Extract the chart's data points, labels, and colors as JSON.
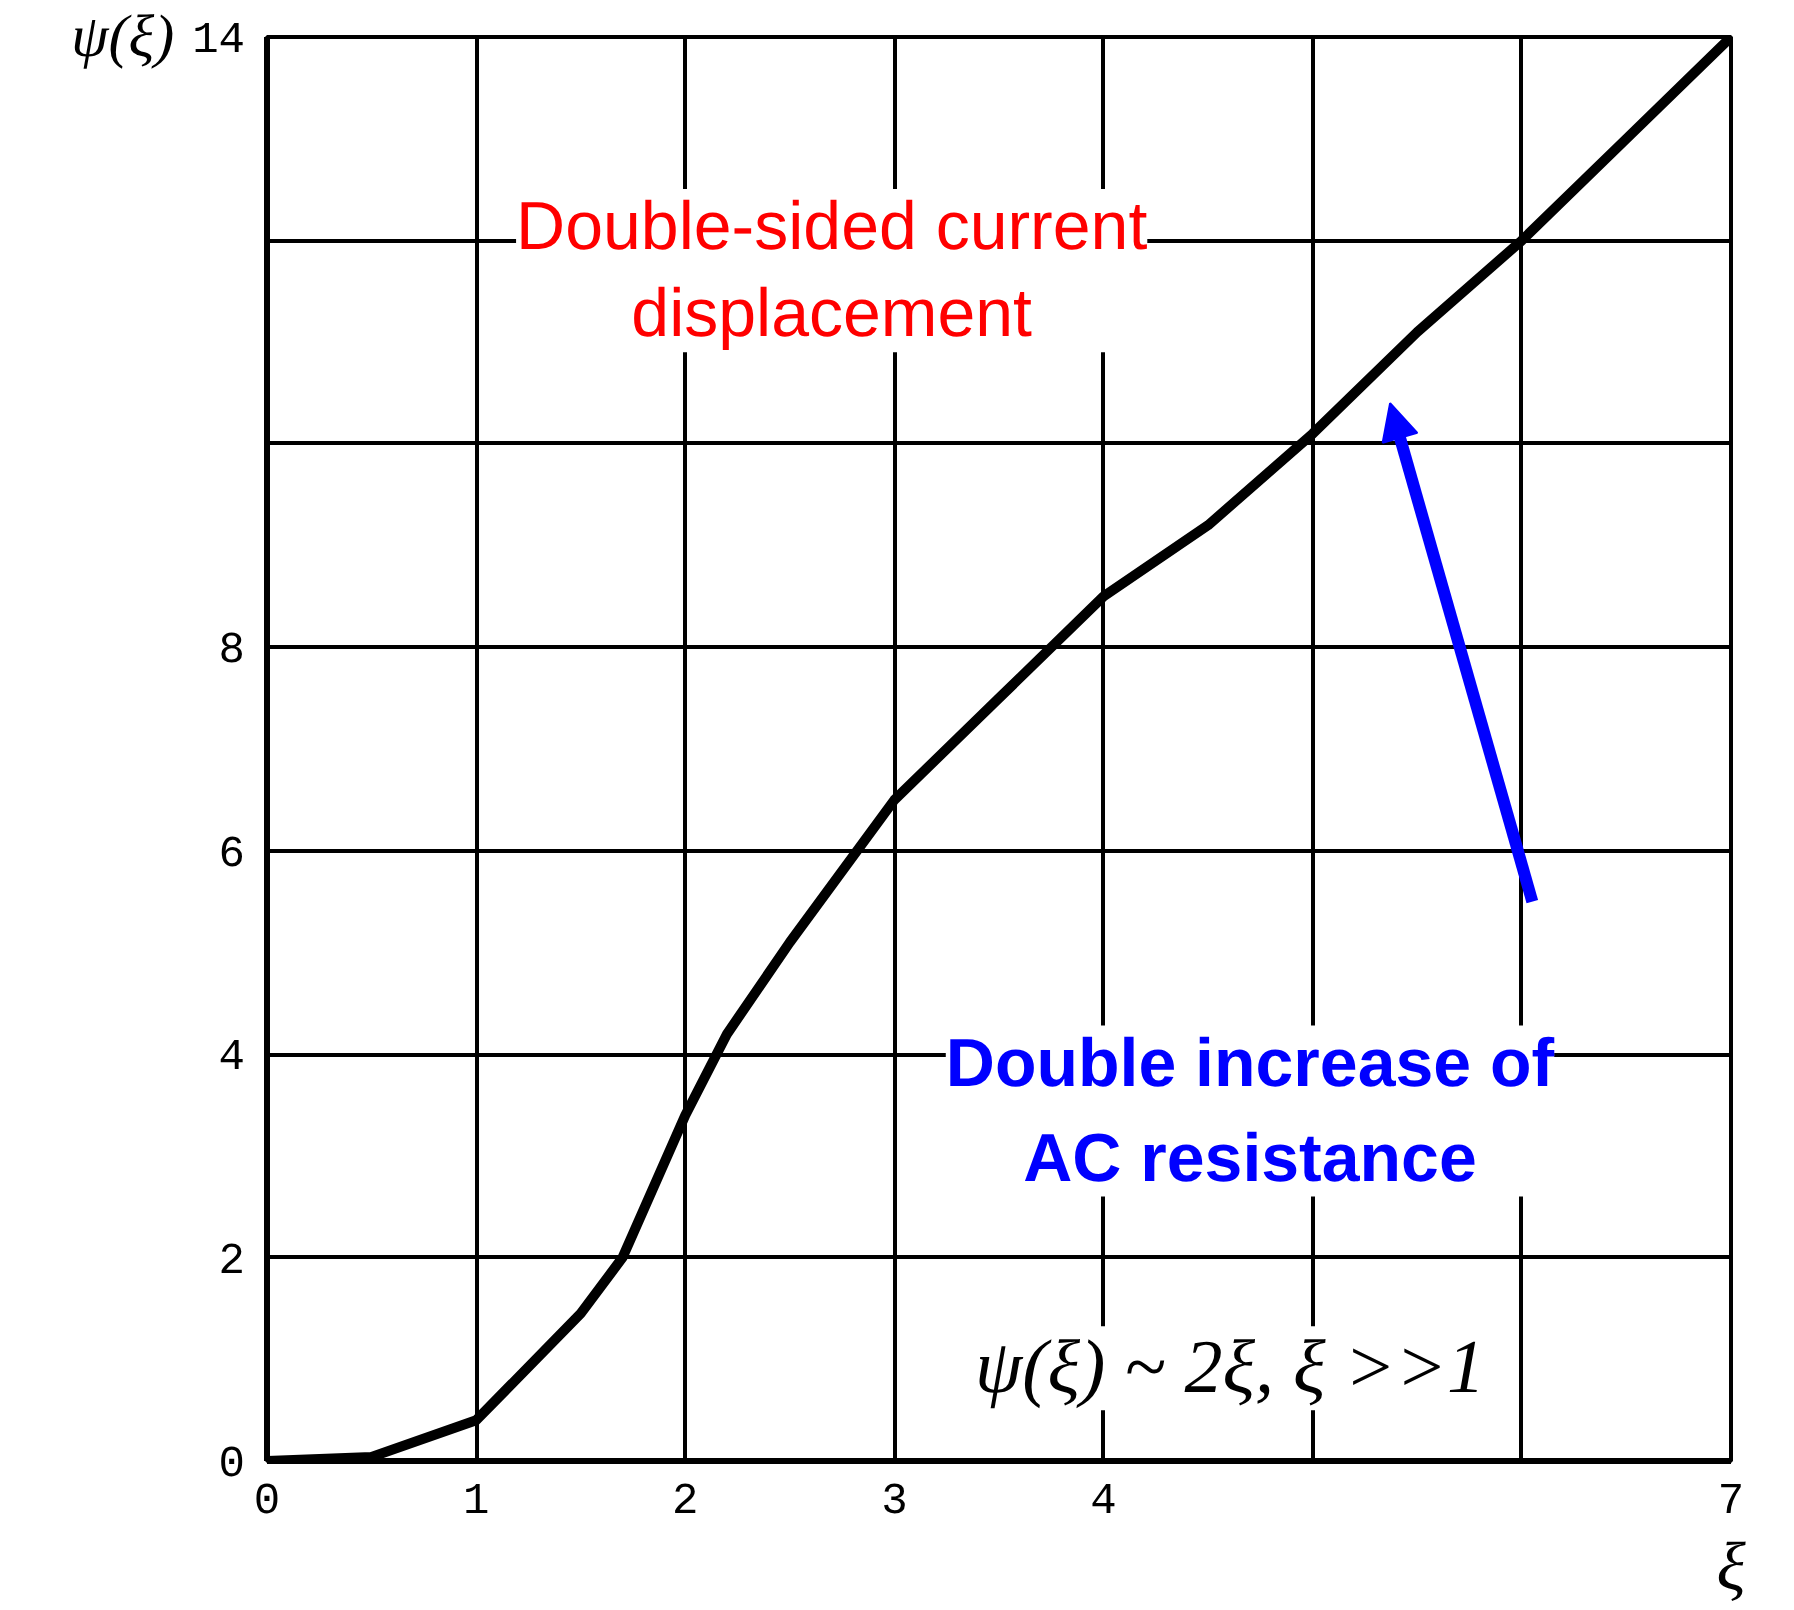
{
  "chart_data": {
    "type": "line",
    "xlabel": "ξ",
    "ylabel": "ψ(ξ)",
    "x": [
      0,
      0.5,
      1,
      1.5,
      1.7,
      2,
      2.2,
      2.5,
      3,
      3.5,
      4,
      4.5,
      5,
      5.5,
      6,
      6.5,
      7
    ],
    "series": [
      {
        "color": "#000000",
        "values": [
          0,
          0.04,
          0.4,
          1.45,
          2.0,
          3.4,
          4.2,
          5.1,
          6.5,
          7.5,
          8.5,
          9.2,
          10.1,
          11.1,
          12.0,
          13.0,
          14
        ]
      }
    ],
    "xlim": [
      0,
      7
    ],
    "ylim": [
      0,
      14
    ],
    "xticks": [
      0,
      1,
      2,
      3,
      4,
      {
        "value": 5,
        "label": null
      },
      {
        "value": 6,
        "label": null
      },
      7
    ],
    "yticks": [
      0,
      2,
      4,
      6,
      8,
      {
        "value": 10,
        "label": null
      },
      {
        "value": 12,
        "label": null
      },
      14
    ],
    "grid": true,
    "marker": "none",
    "line_style": "solid",
    "annotations": [
      "Double-sided current\ndisplacement",
      "Double increase of\nAC resistance",
      "ψ(ξ) ~ 2ξ,  ξ >>1"
    ]
  }
}
